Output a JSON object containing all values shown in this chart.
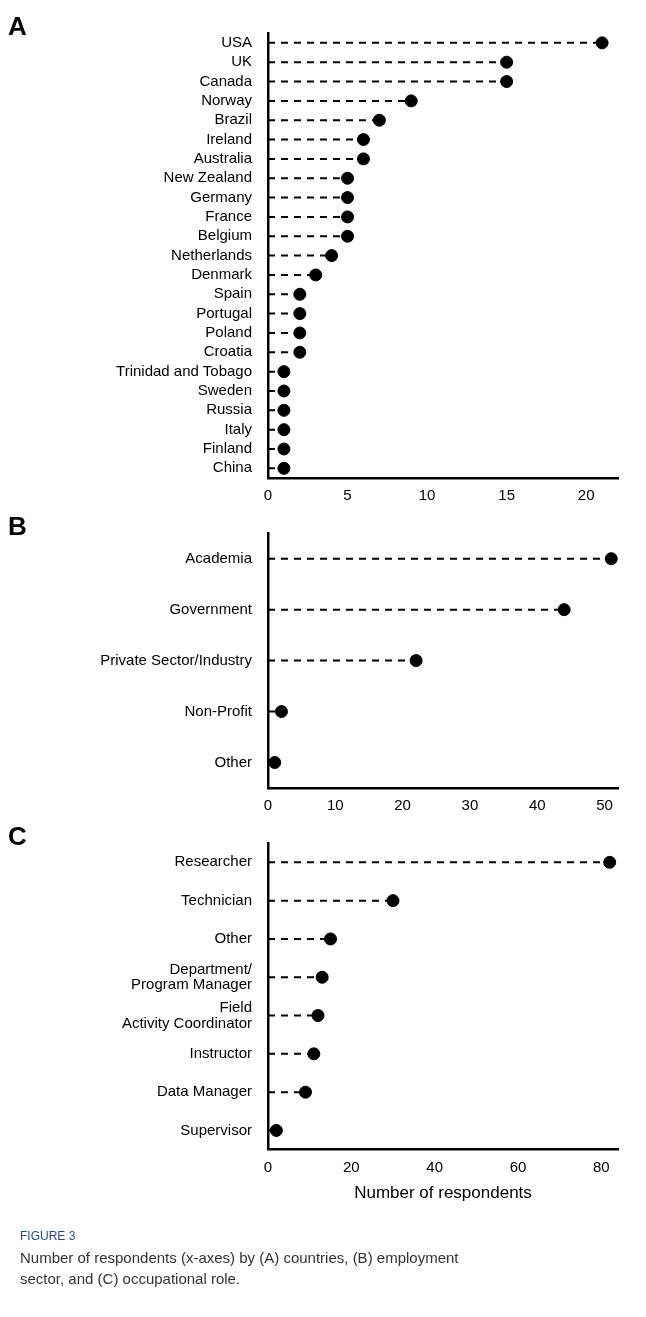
{
  "chart_data": [
    {
      "type": "lollipop",
      "title": "A",
      "orientation": "horizontal",
      "categories": [
        "USA",
        "UK",
        "Canada",
        "Norway",
        "Brazil",
        "Ireland",
        "Australia",
        "New Zealand",
        "Germany",
        "France",
        "Belgium",
        "Netherlands",
        "Denmark",
        "Spain",
        "Portugal",
        "Poland",
        "Croatia",
        "Trinidad and Tobago",
        "Sweden",
        "Russia",
        "Italy",
        "Finland",
        "China"
      ],
      "values": [
        21,
        15,
        15,
        9,
        7,
        6,
        6,
        5,
        5,
        5,
        5,
        4,
        3,
        2,
        2,
        2,
        2,
        1,
        1,
        1,
        1,
        1,
        1
      ],
      "color": "#000000",
      "xlim": [
        0,
        22
      ],
      "xticks": [
        0,
        5,
        10,
        15,
        20
      ],
      "grid": false,
      "legend": false,
      "marker": "circle",
      "line_style": "dashed"
    },
    {
      "type": "lollipop",
      "title": "B",
      "orientation": "horizontal",
      "categories": [
        "Academia",
        "Government",
        "Private Sector/Industry",
        "Non-Profit",
        "Other"
      ],
      "values": [
        51,
        44,
        22,
        2,
        1
      ],
      "color": "#000000",
      "xlim": [
        0,
        52
      ],
      "xticks": [
        0,
        10,
        20,
        30,
        40,
        50
      ],
      "grid": false,
      "legend": false,
      "marker": "circle",
      "line_style": "dashed"
    },
    {
      "type": "lollipop",
      "title": "C",
      "orientation": "horizontal",
      "categories": [
        "Researcher",
        "Technician",
        "Other",
        "Department/\nProgram Manager",
        "Field\nActivity Coordinator",
        "Instructor",
        "Data Manager",
        "Supervisor"
      ],
      "values": [
        82,
        30,
        15,
        13,
        12,
        11,
        9,
        2
      ],
      "color": "#000000",
      "xlim": [
        0,
        84
      ],
      "xticks": [
        0,
        20,
        40,
        60,
        80
      ],
      "xlabel": "Number of respondents",
      "grid": false,
      "legend": false,
      "marker": "circle",
      "line_style": "dashed",
      "annotations": [
        "FIGURE 3",
        "Number of respondents (x-axes) by (A) countries, (B) employment sector, and (C) occupational role."
      ]
    }
  ]
}
